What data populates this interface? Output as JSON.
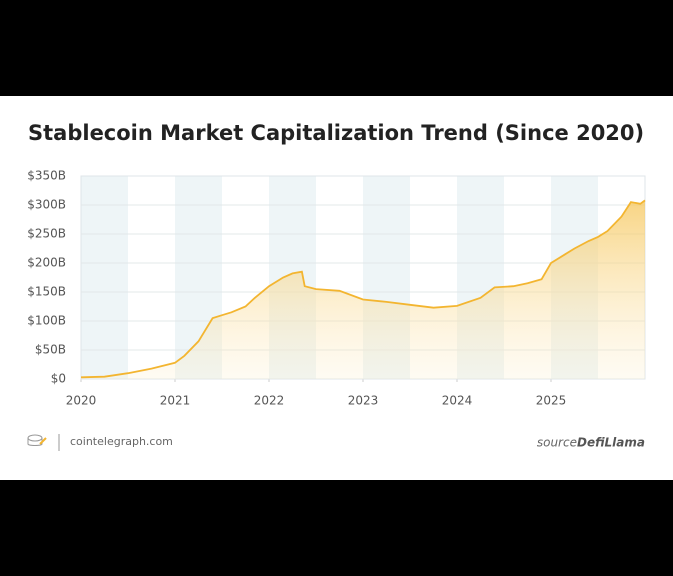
{
  "chart_data": {
    "type": "line",
    "title": "Stablecoin Market Capitalization Trend (Since 2020)",
    "series": [
      {
        "name": "Stablecoin market cap",
        "color": "#f3b530",
        "x": [
          2020.0,
          2020.25,
          2020.5,
          2020.75,
          2021.0,
          2021.1,
          2021.25,
          2021.4,
          2021.5,
          2021.6,
          2021.75,
          2021.85,
          2022.0,
          2022.15,
          2022.25,
          2022.35,
          2022.38,
          2022.5,
          2022.75,
          2023.0,
          2023.25,
          2023.5,
          2023.75,
          2024.0,
          2024.25,
          2024.4,
          2024.6,
          2024.75,
          2024.9,
          2025.0,
          2025.15,
          2025.25,
          2025.4,
          2025.5,
          2025.6,
          2025.75,
          2025.85,
          2025.95,
          2026.0
        ],
        "values": [
          3,
          4,
          10,
          18,
          28,
          40,
          65,
          105,
          110,
          115,
          125,
          140,
          160,
          175,
          182,
          185,
          160,
          155,
          152,
          137,
          133,
          128,
          123,
          126,
          140,
          158,
          160,
          165,
          172,
          200,
          215,
          225,
          238,
          245,
          255,
          280,
          305,
          302,
          308
        ]
      }
    ],
    "xlim": [
      2020,
      2026
    ],
    "xticks": [
      2020,
      2021,
      2022,
      2023,
      2024,
      2025
    ],
    "ylim": [
      0,
      350
    ],
    "yticks": [
      {
        "value": 0,
        "label": "$0"
      },
      {
        "value": 50,
        "label": "$50B"
      },
      {
        "value": 100,
        "label": "$100B"
      },
      {
        "value": 150,
        "label": "$150B"
      },
      {
        "value": 200,
        "label": "$200B"
      },
      {
        "value": 250,
        "label": "$250B"
      },
      {
        "value": 300,
        "label": "$300B"
      },
      {
        "value": 350,
        "label": "$350B"
      }
    ],
    "grid": true
  },
  "footer": {
    "site": "cointelegraph.com",
    "source_label": "source:",
    "source": "DefiLlama"
  }
}
